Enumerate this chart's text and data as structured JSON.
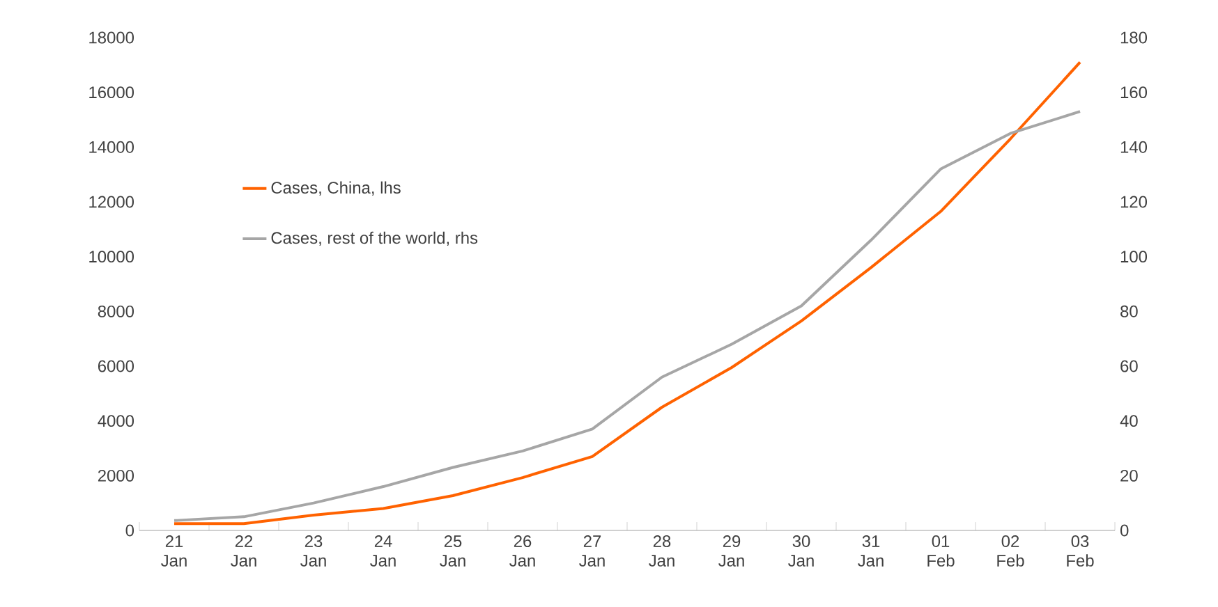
{
  "chart_data": {
    "type": "line",
    "categories": [
      "21 Jan",
      "22 Jan",
      "23 Jan",
      "24 Jan",
      "25 Jan",
      "26 Jan",
      "27 Jan",
      "28 Jan",
      "29 Jan",
      "30 Jan",
      "31 Jan",
      "01 Feb",
      "02 Feb",
      "03 Feb"
    ],
    "series": [
      {
        "name": "Cases, China, lhs",
        "color": "#ff6200",
        "values": [
          250,
          250,
          560,
          800,
          1270,
          1930,
          2700,
          4500,
          5950,
          7650,
          9600,
          11650,
          14300,
          17100
        ]
      },
      {
        "name": "Cases, rest of the world, rhs",
        "color": "#a6a6a6",
        "axis": "y2",
        "values": [
          3.6,
          5,
          10,
          16,
          23,
          29,
          37,
          56,
          68,
          82,
          106,
          132,
          145,
          153
        ]
      }
    ],
    "ylim": [
      0,
      18000
    ],
    "yticks": [
      0,
      2000,
      4000,
      6000,
      8000,
      10000,
      12000,
      14000,
      16000,
      18000
    ],
    "y2lim": [
      0,
      180
    ],
    "y2ticks": [
      0,
      20,
      40,
      60,
      80,
      100,
      120,
      140,
      160,
      180
    ],
    "legend": "left",
    "grid": false,
    "marker": "none",
    "line_style": "solid"
  }
}
